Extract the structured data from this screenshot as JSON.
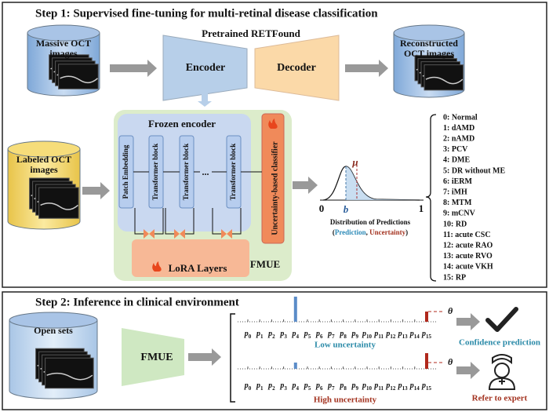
{
  "step1": {
    "title": "Step 1: Supervised fine-tuning for multi-retinal disease classification",
    "massive_oct": [
      "Massive OCT",
      "images"
    ],
    "model": "Pretrained RETFound",
    "encoder": "Encoder",
    "decoder": "Decoder",
    "reconstructed": [
      "Reconstructed",
      "OCT images"
    ],
    "labeled_oct": [
      "Labeled OCT",
      "images"
    ],
    "frozen_encoder": "Frozen encoder",
    "patch_embedding": "Patch Embedding",
    "transformer_blocks": [
      "Transformer block",
      "Transformer block",
      "Transformer block"
    ],
    "ellipsis": "...",
    "classifier": "Uncertainty-based classifier",
    "lora": "LoRA Layers",
    "fmue": "FMUE",
    "distribution": {
      "ticks": [
        "0",
        "b",
        "1"
      ],
      "mu": "μ",
      "caption": "Distribution of Predictions",
      "open": "(",
      "prediction": "Prediction",
      "sep": ", ",
      "uncertainty": "Uncertainty",
      "close": ")"
    },
    "classes": [
      "0: Normal",
      "1: dAMD",
      "2: nAMD",
      "3: PCV",
      "4: DME",
      "5: DR without ME",
      "6: iERM",
      "7: iMH",
      "8: MTM",
      "9: mCNV",
      "10: RD",
      "11: acute CSC",
      "12: acute RAO",
      "13: acute RVO",
      "14: acute VKH",
      "15: RP"
    ]
  },
  "step2": {
    "title": "Step 2: Inference in clinical environment",
    "open_sets": "Open sets",
    "fmue": "FMUE",
    "p_symbol": "p",
    "p_indices": [
      "0",
      "1",
      "2",
      "3",
      "4",
      "5",
      "6",
      "7",
      "8",
      "9",
      "10",
      "11",
      "12",
      "13",
      "14",
      "15"
    ],
    "theta": "θ",
    "low": "Low uncertainty",
    "high": "High uncertainty",
    "confidence": "Confidence prediction",
    "refer": "Refer to expert"
  }
}
